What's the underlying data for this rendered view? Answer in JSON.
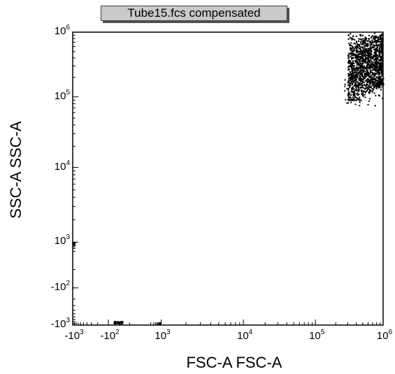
{
  "chart_data": {
    "type": "scatter",
    "title": "Tube15.fcs compensated",
    "xlabel": "FSC-A FSC-A",
    "ylabel": "SSC-A SSC-A",
    "x_scale": "biexponential",
    "y_scale": "biexponential",
    "xlim": [
      -1000,
      1000000
    ],
    "ylim": [
      -1000,
      1000000
    ],
    "x_ticks": [
      {
        "base": "-10",
        "exp": "3",
        "value": -1000
      },
      {
        "base": "-10",
        "exp": "2",
        "value": -100
      },
      {
        "base": "10",
        "exp": "3",
        "value": 1000
      },
      {
        "base": "10",
        "exp": "4",
        "value": 10000
      },
      {
        "base": "10",
        "exp": "5",
        "value": 100000
      },
      {
        "base": "10",
        "exp": "6",
        "value": 1000000
      }
    ],
    "y_ticks": [
      {
        "base": "-10",
        "exp": "3",
        "value": -1000
      },
      {
        "base": "-10",
        "exp": "2",
        "value": -100
      },
      {
        "base": "10",
        "exp": "3",
        "value": 1000
      },
      {
        "base": "10",
        "exp": "4",
        "value": 10000
      },
      {
        "base": "10",
        "exp": "5",
        "value": 100000
      },
      {
        "base": "10",
        "exp": "6",
        "value": 1000000
      }
    ],
    "grid": false,
    "point_color": "#000000",
    "clusters": [
      {
        "x_range": [
          250000,
          1000000
        ],
        "y_range": [
          60000,
          1000000
        ],
        "density": "high"
      },
      {
        "x_range": [
          -200,
          -50
        ],
        "y_range": [
          -1000,
          -900
        ],
        "density": "low"
      }
    ]
  }
}
